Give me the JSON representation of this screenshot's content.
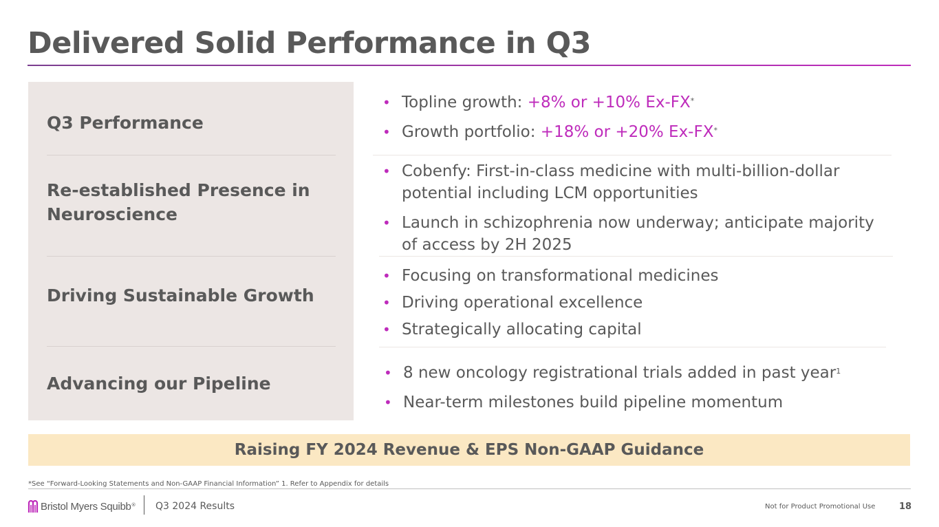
{
  "title": "Delivered Solid Performance in Q3",
  "rows": [
    {
      "label": "Q3 Performance"
    },
    {
      "label_line1": "Re-established Presence in",
      "label_line2": "Neuroscience"
    },
    {
      "label": "Driving Sustainable Growth"
    },
    {
      "label": "Advancing our Pipeline"
    }
  ],
  "bullets": {
    "topline": {
      "prefix": "Topline growth: ",
      "value": "+8% or +10% Ex-FX",
      "sup": "*"
    },
    "growth": {
      "prefix": "Growth portfolio: ",
      "value": "+18% or +20% Ex-FX",
      "sup": "*"
    },
    "cobenfy": {
      "line1": "Cobenfy: First-in-class medicine with multi-billion-dollar",
      "line2": "potential including LCM opportunities"
    },
    "launch": {
      "line1": "Launch in schizophrenia now underway; anticipate majority",
      "line2": "of access by 2H 2025"
    },
    "sustain": [
      "Focusing on transformational medicines",
      "Driving operational excellence",
      "Strategically allocating capital"
    ],
    "pipeline1": {
      "text": "8 new oncology registrational trials added in past year",
      "sup": "1"
    },
    "pipeline2": "Near-term milestones build pipeline momentum"
  },
  "bullet_glyph": "•",
  "banner": "Raising FY 2024 Revenue & EPS Non-GAAP Guidance",
  "footnote": "*See “Forward-Looking Statements and Non-GAAP Financial Information” 1. Refer to Appendix for details",
  "footer": {
    "brand": "Bristol Myers Squibb",
    "brand_mark": "®",
    "results": "Q3 2024 Results",
    "promo": "Not for Product Promotional Use",
    "page": "18"
  },
  "colors": {
    "accent": "#be2bbb",
    "text": "#595959",
    "panel": "#ece6e4",
    "banner": "#fbe8c3"
  }
}
